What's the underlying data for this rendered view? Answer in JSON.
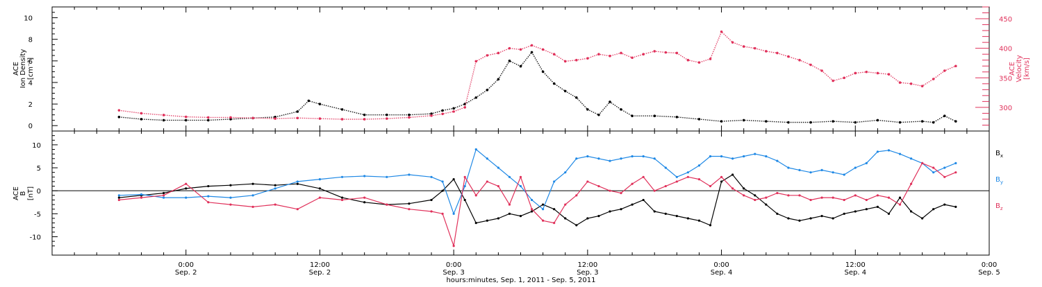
{
  "chart_data": [
    {
      "type": "scatter",
      "panel": "top",
      "ylabel_left": [
        "ACE",
        "Ion Density",
        "[cm⁻³]"
      ],
      "ylabel_right": [
        "ACE",
        "Velocity",
        "[km/s]"
      ],
      "ylim_left": [
        -0.5,
        11
      ],
      "yticks_left": [
        0,
        2,
        4,
        6,
        8,
        10
      ],
      "ylim_right": [
        260,
        470
      ],
      "yticks_right": [
        300,
        350,
        400,
        450
      ],
      "grid": false,
      "series": [
        {
          "name": "Ion Density",
          "axis": "left",
          "color": "#000000",
          "x": [
            -6,
            -4,
            -2,
            0,
            2,
            4,
            6,
            8,
            10,
            11,
            12,
            14,
            16,
            18,
            20,
            22,
            23,
            24,
            25,
            26,
            27,
            28,
            29,
            30,
            31,
            32,
            33,
            34,
            35,
            36,
            37,
            38,
            39,
            40,
            42,
            44,
            46,
            48,
            50,
            52,
            54,
            56,
            58,
            60,
            62,
            64,
            66,
            67,
            68,
            69
          ],
          "y": [
            0.8,
            0.6,
            0.5,
            0.5,
            0.5,
            0.6,
            0.7,
            0.8,
            1.3,
            2.3,
            2.0,
            1.5,
            1.0,
            1.0,
            1.0,
            1.1,
            1.4,
            1.6,
            2.0,
            2.6,
            3.3,
            4.3,
            6.0,
            5.5,
            6.8,
            5.0,
            3.9,
            3.2,
            2.6,
            1.5,
            1.0,
            2.2,
            1.5,
            0.9,
            0.9,
            0.8,
            0.6,
            0.4,
            0.5,
            0.4,
            0.3,
            0.3,
            0.4,
            0.3,
            0.5,
            0.3,
            0.4,
            0.3,
            0.9,
            0.4
          ]
        },
        {
          "name": "Velocity",
          "axis": "right",
          "color": "#e0305a",
          "x": [
            -6,
            -4,
            -2,
            0,
            2,
            4,
            6,
            8,
            10,
            12,
            14,
            16,
            18,
            20,
            22,
            23,
            24,
            25,
            26,
            27,
            28,
            29,
            30,
            31,
            32,
            33,
            34,
            35,
            36,
            37,
            38,
            39,
            40,
            41,
            42,
            43,
            44,
            45,
            46,
            47,
            48,
            49,
            50,
            51,
            52,
            53,
            54,
            55,
            56,
            57,
            58,
            59,
            60,
            61,
            62,
            63,
            64,
            65,
            66,
            67,
            68,
            69
          ],
          "y": [
            295,
            290,
            287,
            284,
            283,
            283,
            282,
            281,
            282,
            281,
            280,
            280,
            281,
            283,
            286,
            289,
            293,
            300,
            378,
            388,
            392,
            400,
            398,
            405,
            398,
            390,
            378,
            380,
            383,
            390,
            387,
            392,
            384,
            390,
            395,
            393,
            392,
            380,
            376,
            382,
            428,
            410,
            403,
            400,
            395,
            392,
            386,
            380,
            372,
            362,
            345,
            350,
            358,
            360,
            358,
            356,
            342,
            340,
            336,
            348,
            362,
            370
          ]
        }
      ]
    },
    {
      "type": "line",
      "panel": "bottom",
      "ylabel_left": [
        "ACE",
        "B",
        "[nT]"
      ],
      "ylim": [
        -14,
        13
      ],
      "yticks": [
        -10,
        -5,
        0,
        5,
        10
      ],
      "legend_position": "right",
      "grid": false,
      "series": [
        {
          "name": "Bx",
          "label_main": "B",
          "label_sub": "x",
          "color": "#000000",
          "x": [
            -6,
            -4,
            -2,
            0,
            2,
            4,
            6,
            8,
            10,
            12,
            14,
            16,
            18,
            20,
            22,
            23,
            24,
            25,
            26,
            27,
            28,
            29,
            30,
            31,
            32,
            33,
            34,
            35,
            36,
            37,
            38,
            39,
            40,
            41,
            42,
            43,
            44,
            45,
            46,
            47,
            48,
            49,
            50,
            51,
            52,
            53,
            54,
            55,
            56,
            57,
            58,
            59,
            60,
            61,
            62,
            63,
            64,
            65,
            66,
            67,
            68,
            69
          ],
          "y": [
            -1.5,
            -1.0,
            -0.5,
            0.5,
            1.0,
            1.2,
            1.5,
            1.2,
            1.5,
            0.5,
            -1.5,
            -2.5,
            -3.0,
            -2.8,
            -2.0,
            0.0,
            2.5,
            -2.0,
            -7.0,
            -6.5,
            -6.0,
            -5.0,
            -5.5,
            -4.5,
            -3.0,
            -4.0,
            -6.0,
            -7.5,
            -6.0,
            -5.5,
            -4.5,
            -4.0,
            -3.0,
            -2.0,
            -4.5,
            -5.0,
            -5.5,
            -6.0,
            -6.5,
            -7.5,
            2.0,
            3.5,
            0.5,
            -1.0,
            -3.0,
            -5.0,
            -6.0,
            -6.5,
            -6.0,
            -5.5,
            -6.0,
            -5.0,
            -4.5,
            -4.0,
            -3.5,
            -5.0,
            -1.5,
            -4.5,
            -6.0,
            -4.0,
            -3.0,
            -3.5
          ]
        },
        {
          "name": "By",
          "label_main": "B",
          "label_sub": "y",
          "color": "#1e88e5",
          "x": [
            -6,
            -4,
            -2,
            0,
            2,
            4,
            6,
            8,
            10,
            12,
            14,
            16,
            18,
            20,
            22,
            23,
            24,
            25,
            26,
            27,
            28,
            29,
            30,
            31,
            32,
            33,
            34,
            35,
            36,
            37,
            38,
            39,
            40,
            41,
            42,
            43,
            44,
            45,
            46,
            47,
            48,
            49,
            50,
            51,
            52,
            53,
            54,
            55,
            56,
            57,
            58,
            59,
            60,
            61,
            62,
            63,
            64,
            65,
            66,
            67,
            68,
            69
          ],
          "y": [
            -1.0,
            -0.8,
            -1.5,
            -1.5,
            -1.2,
            -1.5,
            -1.0,
            0.5,
            2.0,
            2.5,
            3.0,
            3.2,
            3.0,
            3.5,
            3.0,
            2.0,
            -5.0,
            1.0,
            9.0,
            7.0,
            5.0,
            3.0,
            1.0,
            -2.0,
            -4.0,
            2.0,
            4.0,
            7.0,
            7.5,
            7.0,
            6.5,
            7.0,
            7.5,
            7.5,
            7.0,
            5.0,
            3.0,
            4.0,
            5.5,
            7.5,
            7.5,
            7.0,
            7.5,
            8.0,
            7.5,
            6.5,
            5.0,
            4.5,
            4.0,
            4.5,
            4.0,
            3.5,
            5.0,
            6.0,
            8.5,
            8.8,
            8.0,
            7.0,
            6.0,
            4.0,
            5.0,
            6.0
          ]
        },
        {
          "name": "Bz",
          "label_main": "B",
          "label_sub": "z",
          "color": "#e0305a",
          "x": [
            -6,
            -4,
            -2,
            0,
            2,
            4,
            6,
            8,
            10,
            12,
            14,
            16,
            18,
            20,
            22,
            23,
            24,
            25,
            26,
            27,
            28,
            29,
            30,
            31,
            32,
            33,
            34,
            35,
            36,
            37,
            38,
            39,
            40,
            41,
            42,
            43,
            44,
            45,
            46,
            47,
            48,
            49,
            50,
            51,
            52,
            53,
            54,
            55,
            56,
            57,
            58,
            59,
            60,
            61,
            62,
            63,
            64,
            65,
            66,
            67,
            68,
            69
          ],
          "y": [
            -2.0,
            -1.5,
            -1.0,
            1.5,
            -2.5,
            -3.0,
            -3.5,
            -3.0,
            -4.0,
            -1.5,
            -2.0,
            -1.5,
            -3.0,
            -4.0,
            -4.5,
            -5.0,
            -12.0,
            3.0,
            -1.0,
            2.0,
            1.0,
            -3.0,
            3.0,
            -4.0,
            -6.5,
            -7.0,
            -3.0,
            -1.0,
            2.0,
            1.0,
            0.0,
            -0.5,
            1.5,
            3.0,
            0.0,
            1.0,
            2.0,
            3.0,
            2.5,
            1.0,
            3.0,
            0.5,
            -1.0,
            -2.0,
            -1.5,
            -0.5,
            -1.0,
            -1.0,
            -2.0,
            -1.5,
            -1.5,
            -2.0,
            -1.0,
            -2.0,
            -1.0,
            -1.5,
            -3.0,
            1.5,
            6.0,
            5.0,
            3.0,
            4.0
          ]
        }
      ]
    }
  ],
  "x_axis": {
    "range_hours": [
      -12,
      72
    ],
    "tick_hours": [
      0,
      12,
      24,
      36,
      48,
      60,
      72
    ],
    "tick_time_labels": [
      "0:00",
      "12:00",
      "0:00",
      "12:00",
      "0:00",
      "12:00",
      "0:00"
    ],
    "tick_date_labels": [
      "Sep. 2",
      "Sep. 2",
      "Sep. 3",
      "Sep. 3",
      "Sep. 4",
      "Sep. 4",
      "Sep. 5"
    ],
    "xlabel": "hours:minutes, Sep.  1, 2011 - Sep.  5, 2011"
  },
  "colors": {
    "density": "#000000",
    "velocity": "#e0305a",
    "bx": "#000000",
    "by": "#1e88e5",
    "bz": "#e0305a",
    "axes": "#000000"
  }
}
